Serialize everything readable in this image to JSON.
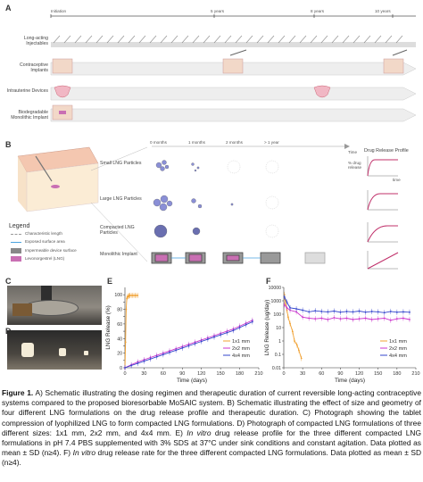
{
  "panel_labels": {
    "a": "A",
    "b": "B",
    "c": "C",
    "d": "D",
    "e": "E",
    "f": "F"
  },
  "panelA": {
    "timeline_marks": [
      "Initiation",
      "5 years",
      "8 years",
      "10 years"
    ],
    "rows": [
      "Long-acting Injectables",
      "Contraceptive Implants",
      "Intrauterine Devices",
      "Biodegradable Monolithic Implant"
    ]
  },
  "panelB": {
    "time_labels": [
      "0 months",
      "1 months",
      "2 months",
      "> 1 year"
    ],
    "time_axis": "Time",
    "profile_title": "Drug Release Profile",
    "rows": [
      "Small LNG Particles",
      "Large LNG Particles",
      "Compacted LNG Particles",
      "Monolithic Implant"
    ],
    "mini_y": "% drug release",
    "mini_x": "time",
    "legend": {
      "title": "Legend",
      "items": [
        "Characteristic length",
        "Exposed surface area",
        "Impermeable device surface",
        "Levonorgestrel (LNG)"
      ]
    }
  },
  "chart_data": [
    {
      "type": "line",
      "panel": "E",
      "xlabel": "Time (days)",
      "ylabel": "LNG Release (%)",
      "xticks": [
        0,
        30,
        60,
        90,
        120,
        150,
        180,
        210
      ],
      "yticks": [
        0,
        10,
        20,
        30,
        40,
        50,
        60,
        70,
        80,
        90,
        100
      ],
      "xlim": [
        0,
        210
      ],
      "ylim": [
        0,
        110
      ],
      "legend": "right",
      "series": [
        {
          "name": "1x1 mm",
          "color": "#f0a030",
          "x": [
            0,
            1,
            2,
            3,
            4,
            5,
            6,
            7,
            8,
            10,
            12,
            14,
            16,
            18,
            20
          ],
          "y": [
            0,
            35,
            80,
            95,
            97,
            98,
            98,
            99,
            99,
            99,
            99,
            99,
            99,
            99,
            99
          ]
        },
        {
          "name": "2x2 mm",
          "color": "#cc33cc",
          "x": [
            0,
            10,
            20,
            30,
            40,
            50,
            60,
            70,
            80,
            90,
            100,
            110,
            120,
            130,
            140,
            150,
            160,
            170,
            180,
            190,
            200
          ],
          "y": [
            0,
            4,
            8,
            11,
            14,
            17,
            20,
            23,
            26,
            29,
            32,
            35,
            38,
            41,
            44,
            47,
            50,
            53,
            57,
            61,
            65
          ]
        },
        {
          "name": "4x4 mm",
          "color": "#3344cc",
          "x": [
            0,
            10,
            20,
            30,
            40,
            50,
            60,
            70,
            80,
            90,
            100,
            110,
            120,
            130,
            140,
            150,
            160,
            170,
            180,
            190,
            200
          ],
          "y": [
            0,
            3,
            6,
            9,
            12,
            15,
            18,
            21,
            24,
            27,
            30,
            33,
            36,
            39,
            42,
            45,
            48,
            51,
            55,
            59,
            63
          ]
        }
      ]
    },
    {
      "type": "line",
      "panel": "F",
      "xlabel": "Time (days)",
      "ylabel": "LNG Release (ug/day)",
      "yscale": "log",
      "xticks": [
        0,
        30,
        60,
        90,
        120,
        150,
        180,
        210
      ],
      "ytick_labels": [
        "0.01",
        "0.1",
        "1",
        "10",
        "100",
        "1000",
        "10000"
      ],
      "xlim": [
        0,
        210
      ],
      "ylim": [
        0.01,
        10000
      ],
      "legend": "right",
      "series": [
        {
          "name": "1x1 mm",
          "color": "#f0a030",
          "x": [
            1,
            2,
            3,
            5,
            7,
            10,
            14,
            17,
            21,
            24,
            28
          ],
          "y": [
            3000,
            1200,
            600,
            200,
            60,
            20,
            5,
            1,
            0.5,
            0.2,
            0.05
          ]
        },
        {
          "name": "2x2 mm",
          "color": "#cc33cc",
          "x": [
            1,
            5,
            10,
            20,
            30,
            40,
            50,
            60,
            70,
            80,
            90,
            100,
            110,
            120,
            130,
            140,
            150,
            160,
            170,
            180,
            190,
            200
          ],
          "y": [
            500,
            300,
            200,
            150,
            60,
            50,
            45,
            50,
            40,
            55,
            45,
            50,
            40,
            45,
            50,
            40,
            45,
            50,
            35,
            45,
            50,
            40
          ]
        },
        {
          "name": "4x4 mm",
          "color": "#3344cc",
          "x": [
            1,
            5,
            10,
            20,
            30,
            40,
            50,
            60,
            70,
            80,
            90,
            100,
            110,
            120,
            130,
            140,
            150,
            160,
            170,
            180,
            190,
            200
          ],
          "y": [
            2000,
            800,
            300,
            250,
            200,
            150,
            180,
            160,
            150,
            170,
            140,
            160,
            150,
            170,
            140,
            160,
            150,
            130,
            160,
            140,
            150,
            140
          ]
        }
      ]
    }
  ],
  "panelC_D": {
    "c_label": "C",
    "d_label": "D"
  },
  "caption": {
    "fig": "Figure 1.",
    "text": " A) Schematic illustrating the dosing regimen and therapeutic duration of current reversible long-acting contraceptive systems compared to the proposed bioresorbable MoSAIC system. B) Schematic illustrating the effect of size and geometry of four different LNG formulations on the drug release profile and therapeutic duration. C) Photograph showing the tablet compression of lyophilized LNG to form compacted LNG formulations. D) Photograph of compacted LNG formulations of three different sizes: 1x1 mm, 2x2 mm, and 4x4 mm. E) ",
    "invitro1": "In vitro",
    "text2": " drug release profile for the three different compacted LNG formulations in pH 7.4 PBS supplemented with 3% SDS at 37°C under sink conditions and constant agitation. Data plotted as mean ± SD (n≥4). F) ",
    "invitro2": "In vitro",
    "text3": " drug release rate for the three different compacted LNG formulations. Data plotted as mean ± SD (n≥4)."
  }
}
